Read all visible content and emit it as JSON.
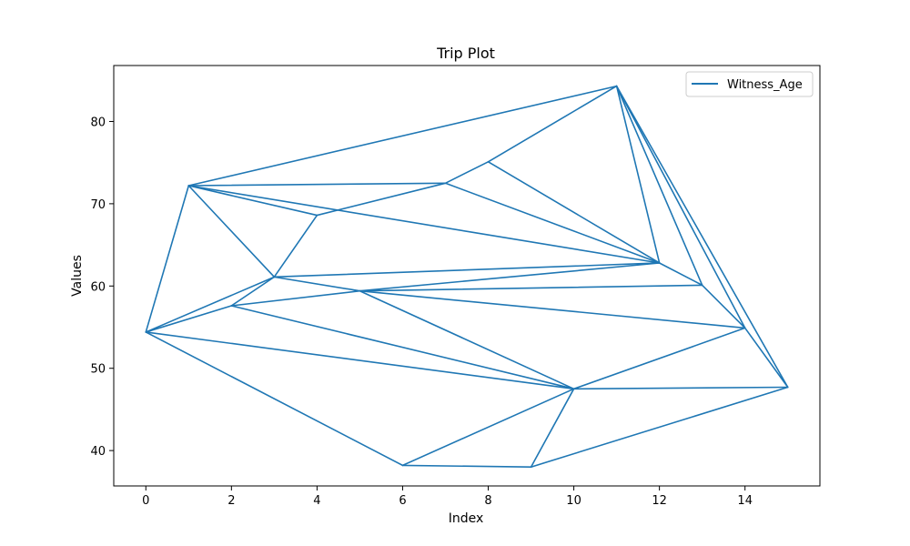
{
  "chart_data": {
    "type": "line",
    "title": "Trip Plot",
    "xlabel": "Index",
    "ylabel": "Values",
    "xlim": [
      -0.75,
      15.75
    ],
    "ylim": [
      35.7,
      86.8
    ],
    "xticks": [
      0,
      2,
      4,
      6,
      8,
      10,
      12,
      14
    ],
    "yticks": [
      40,
      50,
      60,
      70,
      80
    ],
    "legend_position": "upper-right",
    "grid": false,
    "series": [
      {
        "name": "Witness_Age",
        "color": "#1f77b4",
        "points": [
          {
            "x": 0,
            "y": 54.4
          },
          {
            "x": 1,
            "y": 72.2
          },
          {
            "x": 2,
            "y": 57.6
          },
          {
            "x": 3,
            "y": 61.1
          },
          {
            "x": 4,
            "y": 68.6
          },
          {
            "x": 5,
            "y": 59.4
          },
          {
            "x": 6,
            "y": 38.2
          },
          {
            "x": 7,
            "y": 72.5
          },
          {
            "x": 8,
            "y": 75.1
          },
          {
            "x": 9,
            "y": 38.0
          },
          {
            "x": 10,
            "y": 47.5
          },
          {
            "x": 11,
            "y": 84.3
          },
          {
            "x": 12,
            "y": 62.8
          },
          {
            "x": 13,
            "y": 60.1
          },
          {
            "x": 14,
            "y": 54.9
          },
          {
            "x": 15,
            "y": 47.7
          }
        ],
        "edges": [
          [
            0,
            1
          ],
          [
            0,
            2
          ],
          [
            0,
            3
          ],
          [
            0,
            6
          ],
          [
            0,
            10
          ],
          [
            1,
            3
          ],
          [
            1,
            4
          ],
          [
            1,
            7
          ],
          [
            1,
            11
          ],
          [
            1,
            12
          ],
          [
            2,
            3
          ],
          [
            2,
            5
          ],
          [
            2,
            10
          ],
          [
            3,
            4
          ],
          [
            3,
            5
          ],
          [
            3,
            12
          ],
          [
            4,
            7
          ],
          [
            5,
            10
          ],
          [
            5,
            12
          ],
          [
            5,
            13
          ],
          [
            5,
            14
          ],
          [
            6,
            9
          ],
          [
            6,
            10
          ],
          [
            7,
            8
          ],
          [
            7,
            12
          ],
          [
            8,
            11
          ],
          [
            8,
            12
          ],
          [
            9,
            10
          ],
          [
            9,
            15
          ],
          [
            10,
            14
          ],
          [
            10,
            15
          ],
          [
            11,
            12
          ],
          [
            11,
            13
          ],
          [
            11,
            14
          ],
          [
            11,
            15
          ],
          [
            12,
            13
          ],
          [
            13,
            14
          ],
          [
            14,
            15
          ]
        ]
      }
    ]
  }
}
